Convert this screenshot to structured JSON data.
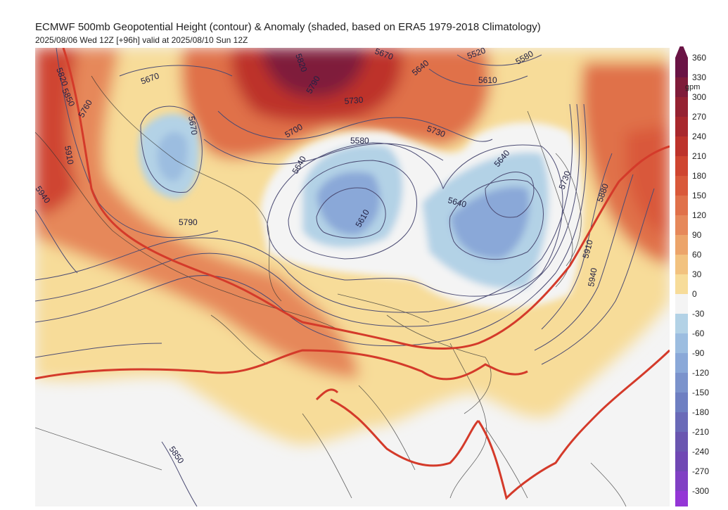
{
  "title": "ECMWF 500mb Geopotential Height (contour) & Anomaly (shaded, based on ERA5 1979-2018 Climatology)",
  "subtitle": "2025/08/06 Wed 12Z [+96h] valid at 2025/08/10 Sun 12Z",
  "colorbar": {
    "unit": "gpm",
    "ticks": [
      "360",
      "330",
      "300",
      "270",
      "240",
      "210",
      "180",
      "150",
      "120",
      "90",
      "60",
      "30",
      "0",
      "-30",
      "-60",
      "-90",
      "-120",
      "-150",
      "-180",
      "-210",
      "-240",
      "-270",
      "-300"
    ],
    "colors": [
      "#6a1445",
      "#7f1c3a",
      "#952232",
      "#a8282d",
      "#bd332b",
      "#cf4530",
      "#d9593a",
      "#e0714a",
      "#e6885a",
      "#eca46a",
      "#f2c27f",
      "#f7dc99",
      "#f4f4f4",
      "#b3d2e6",
      "#9cbde0",
      "#8aa8d8",
      "#7b93cc",
      "#6e7fc2",
      "#6a6ab8",
      "#6a56b0",
      "#7048b4",
      "#8040c4",
      "#9436d6"
    ]
  },
  "contour_labels": [
    {
      "text": "5820",
      "rot": 70
    },
    {
      "text": "5850",
      "rot": 65
    },
    {
      "text": "5760",
      "rot": -60
    },
    {
      "text": "5670",
      "rot": -20
    },
    {
      "text": "5670",
      "rot": 80
    },
    {
      "text": "5790",
      "rot": 0
    },
    {
      "text": "5910",
      "rot": 80
    },
    {
      "text": "5940",
      "rot": 55
    },
    {
      "text": "5820",
      "rot": 70
    },
    {
      "text": "5790",
      "rot": -60
    },
    {
      "text": "5730",
      "rot": -5
    },
    {
      "text": "5700",
      "rot": -30
    },
    {
      "text": "5640",
      "rot": -60
    },
    {
      "text": "5580",
      "rot": 0
    },
    {
      "text": "5610",
      "rot": -60
    },
    {
      "text": "5670",
      "rot": 20
    },
    {
      "text": "5640",
      "rot": -40
    },
    {
      "text": "5520",
      "rot": -20
    },
    {
      "text": "5580",
      "rot": -30
    },
    {
      "text": "5610",
      "rot": 0
    },
    {
      "text": "5730",
      "rot": 20
    },
    {
      "text": "5640",
      "rot": -50
    },
    {
      "text": "5640",
      "rot": 15
    },
    {
      "text": "5730",
      "rot": -70
    },
    {
      "text": "5880",
      "rot": -70
    },
    {
      "text": "5910",
      "rot": -75
    },
    {
      "text": "5940",
      "rot": -80
    },
    {
      "text": "5850",
      "rot": 55
    }
  ]
}
